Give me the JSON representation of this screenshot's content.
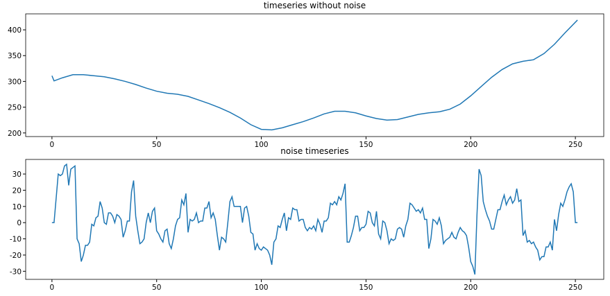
{
  "chart_data": [
    {
      "type": "line",
      "title": "timeseries without noise",
      "xlim": [
        -12.55,
        263.55
      ],
      "ylim": [
        193,
        431
      ],
      "xticks": [
        0,
        50,
        100,
        150,
        200,
        250
      ],
      "yticks": [
        200,
        250,
        300,
        350,
        400
      ],
      "grid": false,
      "series": [
        {
          "color": "#1f77b4",
          "x": [
            0,
            1,
            5,
            10,
            15,
            20,
            25,
            30,
            35,
            40,
            45,
            50,
            55,
            60,
            65,
            70,
            75,
            80,
            85,
            90,
            95,
            100,
            105,
            110,
            115,
            120,
            125,
            130,
            135,
            140,
            145,
            150,
            155,
            160,
            165,
            170,
            175,
            180,
            185,
            190,
            195,
            200,
            205,
            210,
            215,
            220,
            225,
            230,
            235,
            240,
            245,
            251
          ],
          "values": [
            311,
            301,
            307,
            313,
            313,
            311,
            309,
            305,
            300,
            294,
            287,
            281,
            277,
            275,
            271,
            264,
            257,
            249,
            240,
            229,
            216,
            207,
            206,
            210,
            216,
            222,
            229,
            237,
            242,
            242,
            239,
            233,
            228,
            225,
            226,
            231,
            236,
            239,
            241,
            246,
            256,
            272,
            290,
            308,
            323,
            334,
            339,
            342,
            354,
            372,
            394,
            419
          ]
        }
      ]
    },
    {
      "type": "line",
      "title": "noise timeseries",
      "xlim": [
        -12.55,
        263.55
      ],
      "ylim": [
        -35,
        39
      ],
      "xticks": [
        0,
        50,
        100,
        150,
        200,
        250
      ],
      "yticks": [
        -30,
        -20,
        -10,
        0,
        10,
        20,
        30
      ],
      "grid": false,
      "series": [
        {
          "color": "#1f77b4",
          "x": [
            0,
            1,
            2,
            3,
            4,
            5,
            6,
            7,
            8,
            9,
            10,
            11,
            12,
            13,
            14,
            15,
            16,
            17,
            18,
            19,
            20,
            21,
            22,
            23,
            24,
            25,
            26,
            27,
            28,
            29,
            30,
            31,
            32,
            33,
            34,
            35,
            36,
            37,
            38,
            39,
            40,
            41,
            42,
            43,
            44,
            45,
            46,
            47,
            48,
            49,
            50,
            51,
            52,
            53,
            54,
            55,
            56,
            57,
            58,
            59,
            60,
            61,
            62,
            63,
            64,
            65,
            66,
            67,
            68,
            69,
            70,
            71,
            72,
            73,
            74,
            75,
            76,
            77,
            78,
            79,
            80,
            81,
            82,
            83,
            84,
            85,
            86,
            87,
            88,
            89,
            90,
            91,
            92,
            93,
            94,
            95,
            96,
            97,
            98,
            99,
            100,
            101,
            102,
            103,
            104,
            105,
            106,
            107,
            108,
            109,
            110,
            111,
            112,
            113,
            114,
            115,
            116,
            117,
            118,
            119,
            120,
            121,
            122,
            123,
            124,
            125,
            126,
            127,
            128,
            129,
            130,
            131,
            132,
            133,
            134,
            135,
            136,
            137,
            138,
            139,
            140,
            141,
            142,
            143,
            144,
            145,
            146,
            147,
            148,
            149,
            150,
            151,
            152,
            153,
            154,
            155,
            156,
            157,
            158,
            159,
            160,
            161,
            162,
            163,
            164,
            165,
            166,
            167,
            168,
            169,
            170,
            171,
            172,
            173,
            174,
            175,
            176,
            177,
            178,
            179,
            180,
            181,
            182,
            183,
            184,
            185,
            186,
            187,
            188,
            189,
            190,
            191,
            192,
            193,
            194,
            195,
            196,
            197,
            198,
            199,
            200,
            201,
            202,
            203,
            204,
            205,
            206,
            207,
            208,
            209,
            210,
            211,
            212,
            213,
            214,
            215,
            216,
            217,
            218,
            219,
            220,
            221,
            222,
            223,
            224,
            225,
            226,
            227,
            228,
            229,
            230,
            231,
            232,
            233,
            234,
            235,
            236,
            237,
            238,
            239,
            240,
            241,
            242,
            243,
            244,
            245,
            246,
            247,
            248,
            249,
            250,
            251
          ],
          "values": [
            0,
            0,
            15,
            30,
            29,
            30,
            35,
            36,
            23,
            33,
            34,
            35,
            -10,
            -13,
            -24,
            -20,
            -14,
            -14,
            -12,
            -1,
            -2,
            3,
            4,
            13,
            9,
            0,
            -1,
            6,
            6,
            4,
            0,
            5,
            4,
            2,
            -9,
            -5,
            1,
            1,
            19,
            26,
            4,
            -5,
            -13,
            -12,
            -10,
            0,
            6,
            0,
            7,
            9,
            -5,
            -7,
            -10,
            -12,
            -5,
            -4,
            -13,
            -16,
            -10,
            -2,
            2,
            3,
            14,
            11,
            18,
            -6,
            2,
            1,
            2,
            6,
            0,
            1,
            1,
            9,
            9,
            13,
            3,
            6,
            2,
            -8,
            -17,
            -9,
            -10,
            -12,
            0,
            13,
            16,
            10,
            10,
            10,
            10,
            0,
            9,
            10,
            4,
            -6,
            -7,
            -17,
            -13,
            -16,
            -17,
            -15,
            -16,
            -17,
            -20,
            -26,
            -12,
            -10,
            -2,
            -3,
            2,
            6,
            -5,
            3,
            2,
            9,
            8,
            8,
            1,
            2,
            2,
            -3,
            -5,
            -3,
            -4,
            -2,
            -5,
            2,
            -1,
            -6,
            1,
            1,
            3,
            12,
            11,
            13,
            11,
            16,
            14,
            18,
            24,
            -12,
            -12,
            -8,
            -3,
            4,
            4,
            -5,
            -3,
            -3,
            -1,
            7,
            6,
            0,
            -2,
            7,
            -7,
            -10,
            1,
            0,
            -5,
            -13,
            -10,
            -11,
            -10,
            -4,
            -3,
            -4,
            -9,
            -2,
            2,
            12,
            11,
            9,
            7,
            8,
            6,
            9,
            2,
            2,
            -16,
            -10,
            2,
            1,
            -1,
            3,
            -2,
            -13,
            -11,
            -10,
            -9,
            -6,
            -9,
            -10,
            -6,
            -3,
            -5,
            -6,
            -8,
            -15,
            -24,
            -27,
            -32,
            5,
            33,
            29,
            13,
            8,
            4,
            1,
            -4,
            -4,
            2,
            8,
            8,
            13,
            17,
            11,
            14,
            16,
            12,
            14,
            21,
            13,
            14,
            -8,
            -5,
            -12,
            -11,
            -13,
            -12,
            -15,
            -17,
            -23,
            -21,
            -21,
            -15,
            -15,
            -12,
            -17,
            2,
            -5,
            5,
            12,
            10,
            14,
            19,
            22,
            24,
            19,
            0,
            0
          ]
        }
      ]
    }
  ]
}
